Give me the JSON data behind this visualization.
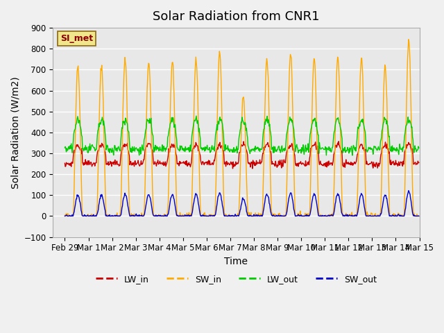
{
  "title": "Solar Radiation from CNR1",
  "xlabel": "Time",
  "ylabel": "Solar Radiation (W/m2)",
  "ylim": [
    -100,
    900
  ],
  "tick_labels": [
    "Feb 29",
    "Mar 1",
    "Mar 2",
    "Mar 3",
    "Mar 4",
    "Mar 5",
    "Mar 6",
    "Mar 7",
    "Mar 8",
    "Mar 9",
    "Mar 10",
    "Mar 11",
    "Mar 12",
    "Mar 13",
    "Mar 14",
    "Mar 15"
  ],
  "legend_label": "SI_met",
  "series": [
    "LW_in",
    "SW_in",
    "LW_out",
    "SW_out"
  ],
  "colors": {
    "LW_in": "#cc0000",
    "SW_in": "#ffaa00",
    "LW_out": "#00cc00",
    "SW_out": "#0000cc"
  },
  "plot_bg_color": "#e8e8e8",
  "fig_bg_color": "#f0f0f0",
  "grid_color": "#ffffff",
  "title_fontsize": 13,
  "axis_label_fontsize": 10,
  "tick_fontsize": 8.5
}
